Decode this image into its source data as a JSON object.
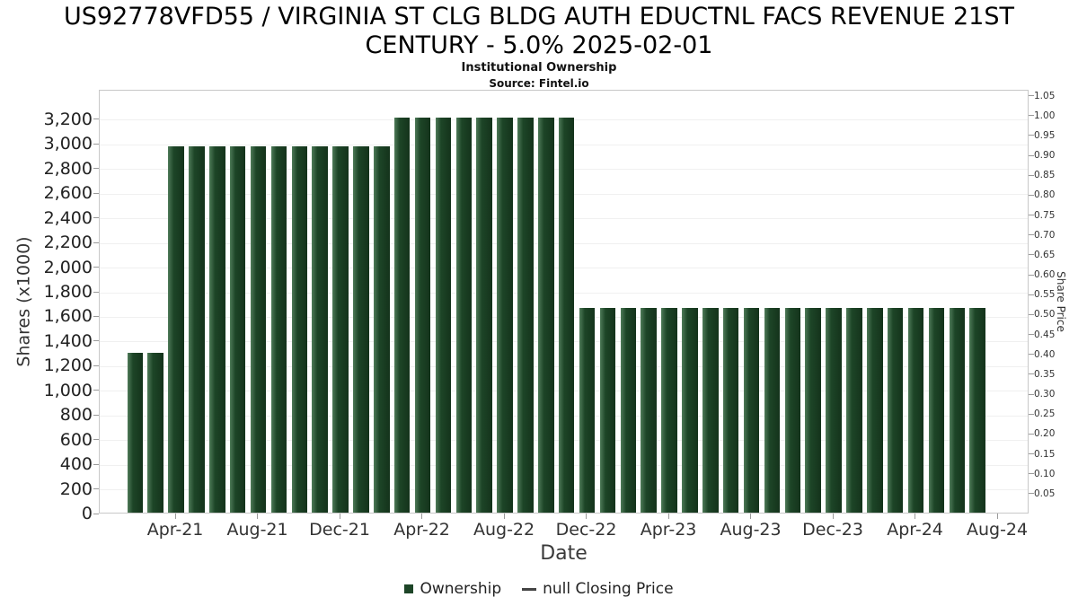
{
  "header": {
    "title_line1": "US92778VFD55 / VIRGINIA ST CLG BLDG AUTH EDUCTNL FACS REVENUE 21ST",
    "title_line2": "CENTURY - 5.0% 2025-02-01",
    "subtitle": "Institutional Ownership",
    "source": "Source: Fintel.io"
  },
  "chart_data": {
    "type": "bar",
    "title": "US92778VFD55 / VIRGINIA ST CLG BLDG AUTH EDUCTNL FACS REVENUE 21ST CENTURY - 5.0% 2025-02-01",
    "subtitle": "Institutional Ownership",
    "source": "Source: Fintel.io",
    "xlabel": "Date",
    "ylabel_left": "Shares (x1000)",
    "ylabel_right": "Share Price",
    "ylim_left": [
      0,
      3440
    ],
    "ylim_right": [
      0,
      1.065
    ],
    "grid": "horizontal",
    "legend_position": "bottom",
    "bar_color": "#1d4527",
    "bar_edge_color": "#4e7a58",
    "y_left_ticks": [
      0,
      200,
      400,
      600,
      800,
      1000,
      1200,
      1400,
      1600,
      1800,
      2000,
      2200,
      2400,
      2600,
      2800,
      3000,
      3200
    ],
    "y_right_tick_labels": [
      "1.05",
      "1.00",
      "0.95",
      "0.90",
      "0.85",
      "0.80",
      "0.75",
      "0.70",
      "0.65",
      "0.60",
      "0.55",
      "0.50",
      "0.45",
      "0.40",
      "0.35",
      "0.30",
      "0.25",
      "0.20",
      "0.15",
      "0.10",
      "0.05"
    ],
    "x_tick_labels": [
      "Apr-21",
      "Aug-21",
      "Dec-21",
      "Apr-22",
      "Aug-22",
      "Dec-22",
      "Apr-23",
      "Aug-23",
      "Dec-23",
      "Apr-24",
      "Aug-24"
    ],
    "categories": [
      "Feb-21",
      "Mar-21",
      "Apr-21",
      "May-21",
      "Jun-21",
      "Jul-21",
      "Aug-21",
      "Sep-21",
      "Oct-21",
      "Nov-21",
      "Dec-21",
      "Jan-22",
      "Feb-22",
      "Mar-22",
      "Apr-22",
      "May-22",
      "Jun-22",
      "Jul-22",
      "Aug-22",
      "Sep-22",
      "Oct-22",
      "Nov-22",
      "Dec-22",
      "Jan-23",
      "Feb-23",
      "Mar-23",
      "Apr-23",
      "May-23",
      "Jun-23",
      "Jul-23",
      "Aug-23",
      "Sep-23",
      "Oct-23",
      "Nov-23",
      "Dec-23",
      "Jan-24",
      "Feb-24",
      "Mar-24",
      "Apr-24",
      "May-24",
      "Jun-24",
      "Jul-24"
    ],
    "values": [
      1300,
      1300,
      2975,
      2975,
      2975,
      2975,
      2975,
      2975,
      2975,
      2975,
      2975,
      2975,
      2975,
      3210,
      3210,
      3210,
      3210,
      3210,
      3210,
      3210,
      3210,
      3210,
      1660,
      1660,
      1660,
      1660,
      1660,
      1660,
      1660,
      1660,
      1660,
      1660,
      1660,
      1660,
      1660,
      1660,
      1660,
      1660,
      1660,
      1660,
      1660,
      1660
    ],
    "series_name": "Ownership",
    "legend": [
      {
        "label": "Ownership",
        "marker": "square",
        "color": "#1d4527"
      },
      {
        "label": "null Closing Price",
        "marker": "dash",
        "color": "#444444"
      }
    ]
  }
}
